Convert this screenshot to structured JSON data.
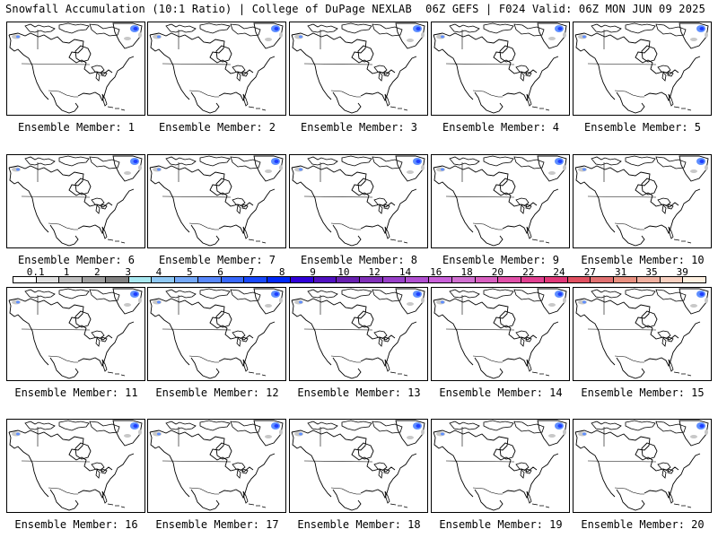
{
  "header": {
    "left_title": "Snowfall Accumulation (10:1 Ratio) | College of DuPage NEXLAB",
    "right_title": "06Z GEFS | F024 Valid: 06Z MON JUN 09 2025"
  },
  "members": [
    {
      "label": "Ensemble Member: 1"
    },
    {
      "label": "Ensemble Member: 2"
    },
    {
      "label": "Ensemble Member: 3"
    },
    {
      "label": "Ensemble Member: 4"
    },
    {
      "label": "Ensemble Member: 5"
    },
    {
      "label": "Ensemble Member: 6"
    },
    {
      "label": "Ensemble Member: 7"
    },
    {
      "label": "Ensemble Member: 8"
    },
    {
      "label": "Ensemble Member: 9"
    },
    {
      "label": "Ensemble Member: 10"
    },
    {
      "label": "Ensemble Member: 11"
    },
    {
      "label": "Ensemble Member: 12"
    },
    {
      "label": "Ensemble Member: 13"
    },
    {
      "label": "Ensemble Member: 14"
    },
    {
      "label": "Ensemble Member: 15"
    },
    {
      "label": "Ensemble Member: 16"
    },
    {
      "label": "Ensemble Member: 17"
    },
    {
      "label": "Ensemble Member: 18"
    },
    {
      "label": "Ensemble Member: 19"
    },
    {
      "label": "Ensemble Member: 20"
    }
  ],
  "colorbar": {
    "labels": [
      "0.1",
      "1",
      "2",
      "3",
      "4",
      "5",
      "6",
      "7",
      "8",
      "9",
      "10",
      "12",
      "14",
      "16",
      "18",
      "20",
      "22",
      "24",
      "27",
      "31",
      "35",
      "39"
    ],
    "colors": [
      "#ffffff",
      "#e0e0e0",
      "#c0c0c0",
      "#a0a0a0",
      "#808080",
      "#a8e8f0",
      "#8ec8f4",
      "#74a8f8",
      "#5888fc",
      "#3868fc",
      "#1848fc",
      "#0028f8",
      "#3000d8",
      "#5010c0",
      "#6820b0",
      "#8030b8",
      "#9840c8",
      "#b050d0",
      "#c860d8",
      "#d070d0",
      "#d860c0",
      "#e050a8",
      "#e04090",
      "#e03878",
      "#e05060",
      "#e07070",
      "#e89080",
      "#f0b0a0",
      "#f8d0c0",
      "#fff0e0"
    ]
  },
  "colors": {
    "coast": "#000000",
    "snow_light": "#c8c8c8",
    "snow_blue": "#5f8fff",
    "snow_dark": "#1f3fff"
  }
}
